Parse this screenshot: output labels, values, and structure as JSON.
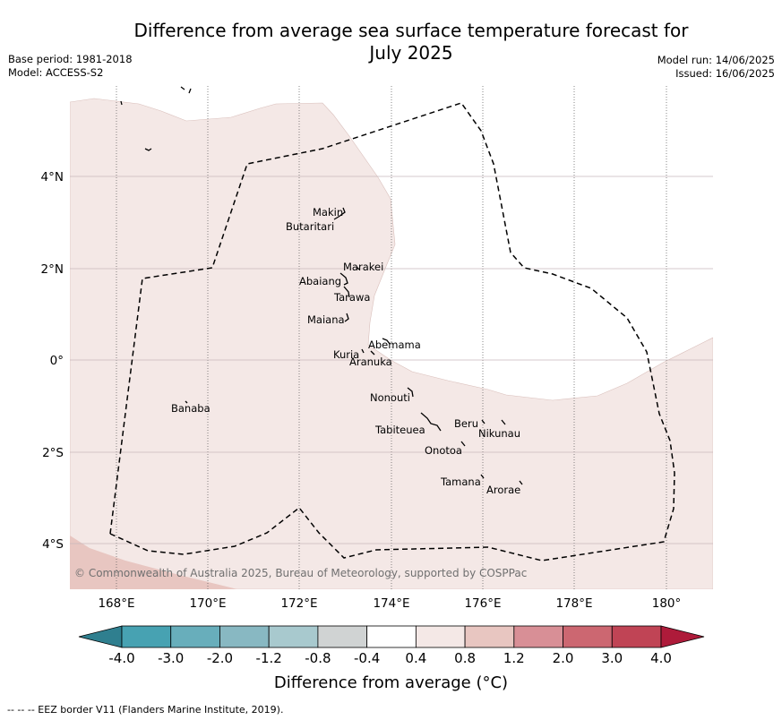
{
  "title_line1": "Difference from average sea surface temperature forecast for",
  "title_line2": "July 2025",
  "base_period": "Base period: 1981-2018",
  "model": "Model: ACCESS-S2",
  "model_run": "Model run: 14/06/2025",
  "issued": "Issued: 16/06/2025",
  "copyright": "© Commonwealth of Australia 2025, Bureau of Meteorology, supported by COSPPac",
  "lon_ticks": [
    "168°E",
    "170°E",
    "172°E",
    "174°E",
    "176°E",
    "178°E",
    "180°"
  ],
  "lat_ticks": [
    "4°N",
    "2°N",
    "0°",
    "2°S",
    "4°S"
  ],
  "places": [
    {
      "name": "Makin"
    },
    {
      "name": "Butaritari"
    },
    {
      "name": "Marakei"
    },
    {
      "name": "Abaiang"
    },
    {
      "name": "Tarawa"
    },
    {
      "name": "Maiana"
    },
    {
      "name": "Abemama"
    },
    {
      "name": "Kuria"
    },
    {
      "name": "Aranuka"
    },
    {
      "name": "Nonouti"
    },
    {
      "name": "Banaba"
    },
    {
      "name": "Tabiteuea"
    },
    {
      "name": "Beru"
    },
    {
      "name": "Nikunau"
    },
    {
      "name": "Onotoa"
    },
    {
      "name": "Tamana"
    },
    {
      "name": "Arorae"
    }
  ],
  "colorbar": {
    "labels": [
      "-4.0",
      "-3.0",
      "-2.0",
      "-1.2",
      "-0.8",
      "-0.4",
      "0.4",
      "0.8",
      "1.2",
      "2.0",
      "3.0",
      "4.0"
    ],
    "colors": [
      "#2f7f8f",
      "#47a2b2",
      "#68aebb",
      "#88b8c2",
      "#a8c9ce",
      "#d0d3d3",
      "#ffffff",
      "#f4e8e6",
      "#e8c6c1",
      "#d88f96",
      "#cc6771",
      "#c04455",
      "#ae1b3a"
    ],
    "title": "Difference from average (°C)"
  },
  "legend_note": "--  --  -- EEZ border V11 (Flanders Marine Institute, 2019)."
}
